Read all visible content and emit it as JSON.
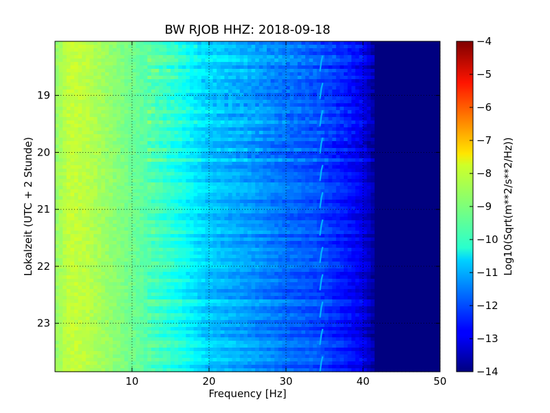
{
  "chart_data": {
    "type": "heatmap",
    "title": "BW RJOB HHZ: 2018-09-18",
    "xlabel": "Frequency [Hz]",
    "ylabel": "Lokalzeit (UTC + 2 Stunde)",
    "xlim": [
      0,
      50
    ],
    "ylim": [
      18.05,
      23.85
    ],
    "y_inverted": true,
    "x_ticks": [
      10,
      20,
      30,
      40,
      50
    ],
    "y_ticks": [
      19,
      20,
      21,
      22,
      23
    ],
    "grid": true,
    "colormap": "jet",
    "colorbar": {
      "label": "Log10(Sqrt(m**2/s**2/Hz))",
      "range": [
        -14,
        -4
      ],
      "ticks": [
        -4,
        -5,
        -6,
        -7,
        -8,
        -9,
        -10,
        -11,
        -12,
        -13,
        -14
      ]
    },
    "spectrum_profile": {
      "frequency_hz": [
        0,
        2,
        4,
        8,
        12,
        16,
        20,
        25,
        30,
        34,
        38,
        40,
        42,
        50
      ],
      "log10_amplitude": [
        -8.8,
        -8.3,
        -8.4,
        -8.9,
        -9.4,
        -10.0,
        -10.8,
        -11.2,
        -11.7,
        -12.0,
        -12.6,
        -13.0,
        -14.0,
        -14.0
      ]
    },
    "spectral_line_hz": 34.5
  }
}
